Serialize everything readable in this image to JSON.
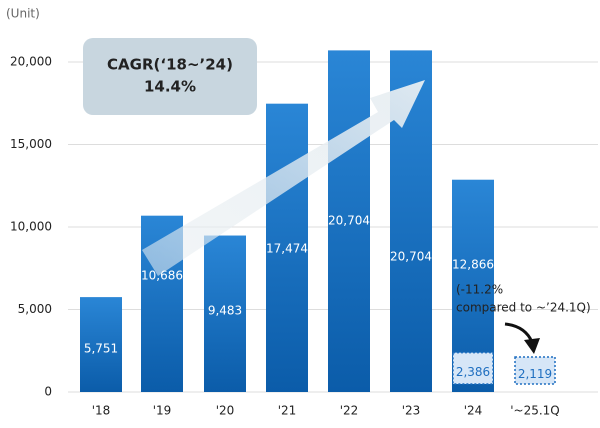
{
  "chart_data": {
    "type": "bar",
    "unit_label": "(Unit)",
    "categories": [
      "'18",
      "'19",
      "'20",
      "'21",
      "'22",
      "'23",
      "'24",
      "'~25.1Q"
    ],
    "values": [
      5751,
      10686,
      9483,
      17474,
      20704,
      20704,
      12866,
      null
    ],
    "value_labels": [
      "5,751",
      "10,686",
      "9,483",
      "17,474",
      "20,704",
      "20,704",
      "12,866",
      null
    ],
    "q1_values": [
      null,
      null,
      null,
      null,
      null,
      null,
      2386,
      2119
    ],
    "q1_value_labels": [
      null,
      null,
      null,
      null,
      null,
      null,
      "2,386",
      "2,119"
    ],
    "color": "#1673c6",
    "q1_color": "#d6e6f7",
    "ylim": [
      0,
      21000
    ],
    "yticks": [
      0,
      {
        "value": 5000,
        "label": "5,000"
      },
      {
        "value": 10000,
        "label": "10,000"
      },
      {
        "value": 15000,
        "label": "15,000"
      },
      {
        "value": 20000,
        "label": "20,000"
      }
    ],
    "grid": true,
    "cagr_title": "CAGR(‘18~’24)",
    "cagr_value": "14.4%",
    "change_line1": "(-11.2%",
    "change_line2": "compared to ~’24.1Q)"
  }
}
